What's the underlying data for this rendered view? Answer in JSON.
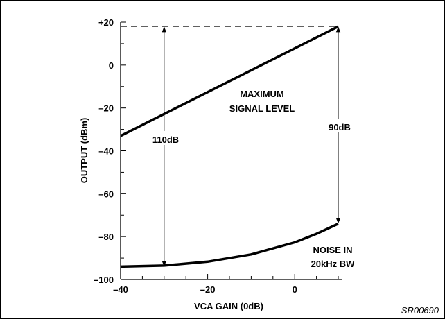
{
  "figure_code": "SR00690",
  "chart_data": {
    "type": "line",
    "xlabel": "VCA GAIN (0dB)",
    "ylabel": "OUTPUT (dBm)",
    "xlim": [
      -40,
      10
    ],
    "ylim": [
      -100,
      20
    ],
    "x_ticks": [
      -40,
      -20,
      0
    ],
    "x_tick_labels": [
      "–40",
      "–20",
      "0"
    ],
    "y_ticks": [
      20,
      0,
      -20,
      -40,
      -60,
      -80,
      -100
    ],
    "y_tick_labels": [
      "+20",
      "0",
      "–20",
      "–40",
      "–60",
      "–80",
      "–100"
    ],
    "grid": false,
    "series": [
      {
        "name": "MAXIMUM SIGNAL LEVEL",
        "label_lines": [
          "MAXIMUM",
          "SIGNAL LEVEL"
        ],
        "x": [
          -40,
          10
        ],
        "y": [
          -33,
          18
        ]
      },
      {
        "name": "NOISE IN 20kHz BW",
        "label_lines": [
          "NOISE IN",
          "20kHz BW"
        ],
        "x": [
          -40,
          -30,
          -20,
          -10,
          0,
          5,
          10
        ],
        "y": [
          -94,
          -93.5,
          -91.7,
          -88.3,
          -82.7,
          -78.7,
          -74
        ]
      }
    ],
    "annotations": [
      {
        "text": "110dB",
        "x": -30,
        "y_from": 18,
        "y_to": -94
      },
      {
        "text": "90dB",
        "x": 10,
        "y_from": 18,
        "y_to": -74
      }
    ],
    "reference_line": {
      "y": 18,
      "style": "dashed"
    }
  }
}
